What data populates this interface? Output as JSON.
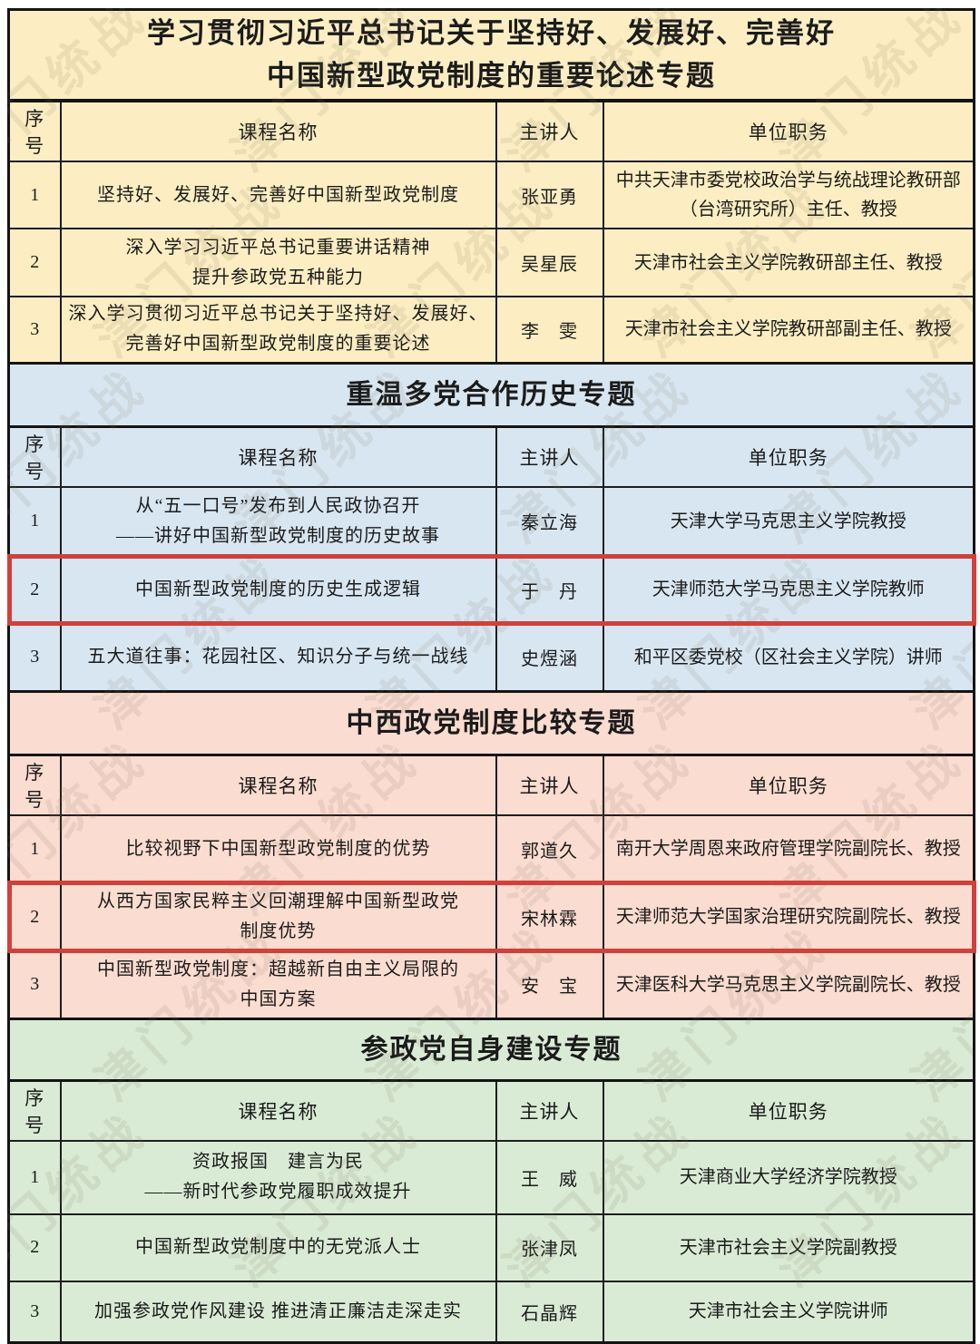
{
  "page": {
    "watermark": "津门统战"
  },
  "columns": [
    "序号",
    "课程名称",
    "主讲人",
    "单位职务"
  ],
  "highlight_color": "#d0413b",
  "sections": [
    {
      "title": "学习贯彻习近平总书记关于坚持好、发展好、完善好\n中国新型政党制度的重要论述专题",
      "bg": "#fceec2",
      "rows": [
        {
          "no": "1",
          "course": "坚持好、发展好、完善好中国新型政党制度",
          "speaker": "张亚勇",
          "unit": "中共天津市委党校政治学与统战理论教研部\n（台湾研究所）主任、教授",
          "highlight": false
        },
        {
          "no": "2",
          "course": "深入学习习近平总书记重要讲话精神\n提升参政党五种能力",
          "speaker": "吴星辰",
          "unit": "天津市社会主义学院教研部主任、教授",
          "highlight": false
        },
        {
          "no": "3",
          "course": "深入学习贯彻习近平总书记关于坚持好、发展好、\n完善好中国新型政党制度的重要论述",
          "speaker": "李　雯",
          "unit": "天津市社会主义学院教研部副主任、教授",
          "highlight": false
        }
      ]
    },
    {
      "title": "重温多党合作历史专题",
      "bg": "#d8e6f2",
      "rows": [
        {
          "no": "1",
          "course": "从“五一口号”发布到人民政协召开\n——讲好中国新型政党制度的历史故事",
          "speaker": "秦立海",
          "unit": "天津大学马克思主义学院教授",
          "highlight": false
        },
        {
          "no": "2",
          "course": "中国新型政党制度的历史生成逻辑",
          "speaker": "于　丹",
          "unit": "天津师范大学马克思主义学院教师",
          "highlight": true
        },
        {
          "no": "3",
          "course": "五大道往事：花园社区、知识分子与统一战线",
          "speaker": "史煜涵",
          "unit": "和平区委党校（区社会主义学院）讲师",
          "highlight": false
        }
      ]
    },
    {
      "title": "中西政党制度比较专题",
      "bg": "#fbdcd0",
      "rows": [
        {
          "no": "1",
          "course": "比较视野下中国新型政党制度的优势",
          "speaker": "郭道久",
          "unit": "南开大学周恩来政府管理学院副院长、教授",
          "highlight": false
        },
        {
          "no": "2",
          "course": "从西方国家民粹主义回潮理解中国新型政党\n制度优势",
          "speaker": "宋林霖",
          "unit": "天津师范大学国家治理研究院副院长、教授",
          "highlight": true
        },
        {
          "no": "3",
          "course": "中国新型政党制度：超越新自由主义局限的\n中国方案",
          "speaker": "安　宝",
          "unit": "天津医科大学马克思主义学院副院长、教授",
          "highlight": false
        }
      ]
    },
    {
      "title": "参政党自身建设专题",
      "bg": "#d9ebd5",
      "rows": [
        {
          "no": "1",
          "course": "资政报国　建言为民\n——新时代参政党履职成效提升",
          "speaker": "王　威",
          "unit": "天津商业大学经济学院教授",
          "highlight": false
        },
        {
          "no": "2",
          "course": "中国新型政党制度中的无党派人士",
          "speaker": "张津凤",
          "unit": "天津市社会主义学院副教授",
          "highlight": false
        },
        {
          "no": "3",
          "course": "加强参政党作风建设 推进清正廉洁走深走实",
          "speaker": "石晶辉",
          "unit": "天津市社会主义学院讲师",
          "highlight": false
        }
      ]
    }
  ]
}
